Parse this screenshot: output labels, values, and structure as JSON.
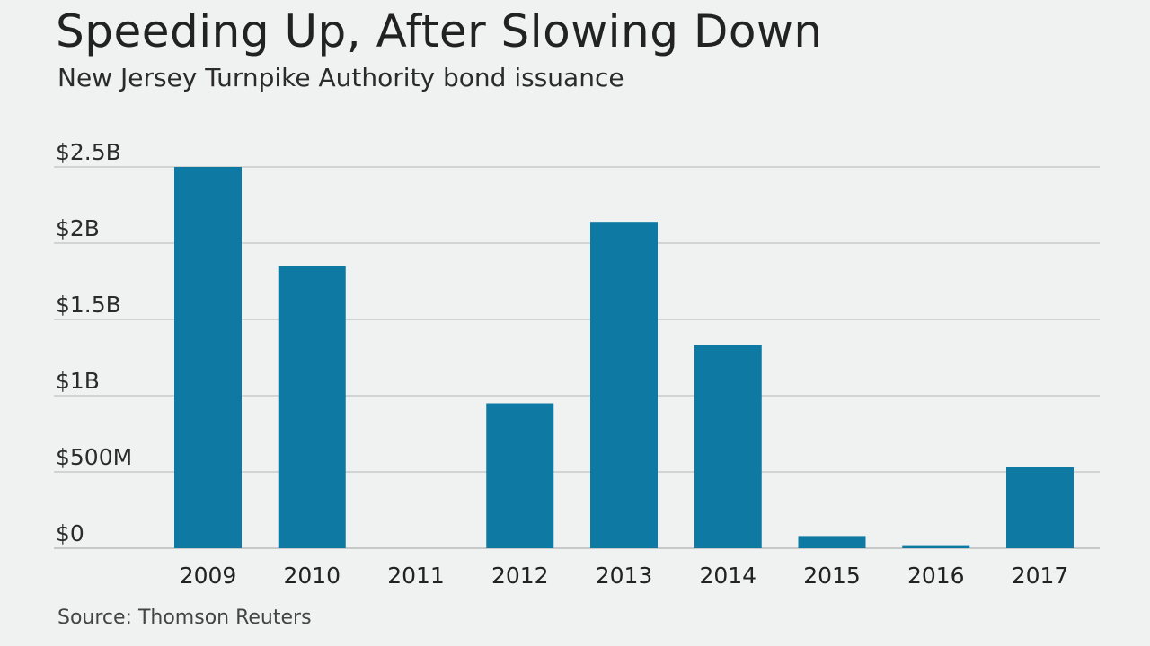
{
  "chart_data": {
    "type": "bar",
    "title": "Speeding Up, After Slowing Down",
    "subtitle": "New Jersey Turnpike Authority bond issuance",
    "source": "Source: Thomson Reuters",
    "categories": [
      "2009",
      "2010",
      "2011",
      "2012",
      "2013",
      "2014",
      "2015",
      "2016",
      "2017"
    ],
    "values": [
      2.5,
      1.85,
      0,
      0.95,
      2.14,
      1.33,
      0.08,
      0.02,
      0.53
    ],
    "value_unit": "billion USD",
    "ylim": [
      0,
      2.5
    ],
    "yticks": [
      {
        "value": 0,
        "label": "$0"
      },
      {
        "value": 0.5,
        "label": "$500M"
      },
      {
        "value": 1,
        "label": "$1B"
      },
      {
        "value": 1.5,
        "label": "$1.5B"
      },
      {
        "value": 2,
        "label": "$2B"
      },
      {
        "value": 2.5,
        "label": "$2.5B"
      }
    ],
    "bar_color": "#0e7aa3",
    "grid": true,
    "legend": "none"
  }
}
